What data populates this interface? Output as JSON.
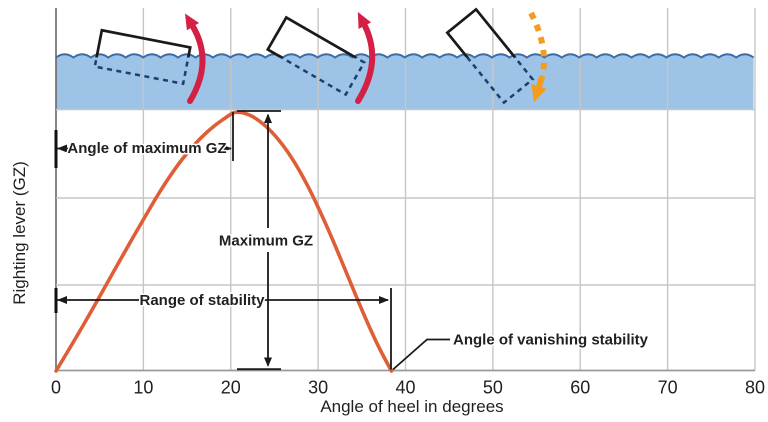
{
  "figure": {
    "x_axis_title": "Angle of heel in degrees",
    "y_axis_title": "Righting lever (GZ)",
    "annotations": {
      "angle_max_gz": "Angle of maximum GZ",
      "maximum_gz": "Maximum GZ",
      "range_of_stability": "Range of stability",
      "vanishing_stability": "Angle of vanishing stability"
    }
  },
  "chart_data": {
    "type": "line",
    "title": "",
    "xlabel": "Angle of heel in degrees",
    "ylabel": "Righting lever (GZ)",
    "xlim": [
      0,
      80
    ],
    "x_ticks": [
      "0",
      "10",
      "20",
      "30",
      "40",
      "50",
      "60",
      "70",
      "80"
    ],
    "grid": true,
    "series": [
      {
        "name": "GZ righting lever curve",
        "color": "#dd5e37",
        "points_deg_gz": [
          [
            0,
            0
          ],
          [
            2,
            0.112
          ],
          [
            4,
            0.228
          ],
          [
            6,
            0.348
          ],
          [
            8,
            0.468
          ],
          [
            10,
            0.585
          ],
          [
            12,
            0.7
          ],
          [
            14,
            0.8
          ],
          [
            16,
            0.882
          ],
          [
            18,
            0.945
          ],
          [
            20,
            0.992
          ],
          [
            20.5,
            1.0
          ],
          [
            21.5,
            0.998
          ],
          [
            23,
            0.975
          ],
          [
            25,
            0.915
          ],
          [
            27,
            0.825
          ],
          [
            29,
            0.705
          ],
          [
            31,
            0.56
          ],
          [
            33,
            0.4
          ],
          [
            35,
            0.235
          ],
          [
            36.8,
            0.1
          ],
          [
            38.4,
            0
          ]
        ]
      }
    ],
    "key_values": {
      "angle_of_maximum_gz_deg": 20.5,
      "angle_of_vanishing_stability_deg": 38.4,
      "range_of_stability_deg": [
        0,
        38.4
      ],
      "maximum_gz_normalized": 1.0
    },
    "illustrations": {
      "sea_surface": "water band with wavy surface",
      "ships": [
        {
          "heel_deg": 11,
          "arrow": "red-righting-arrow",
          "meaning": "rights itself"
        },
        {
          "heel_deg": 30,
          "arrow": "red-righting-arrow",
          "meaning": "rights itself"
        },
        {
          "heel_deg": 51,
          "arrow": "orange-capsize-arrow",
          "meaning": "capsizes"
        }
      ]
    }
  },
  "colors": {
    "water": "#9dc3e6",
    "wave": "#3c6ca8",
    "curve": "#dd5e37",
    "red_arrow": "#d42045",
    "orange_arrow": "#f39c1f",
    "grid": "#c6c6c6",
    "axis": "#9a9a9a",
    "ink": "#231f20",
    "boat_dash": "#1c3f6e"
  }
}
